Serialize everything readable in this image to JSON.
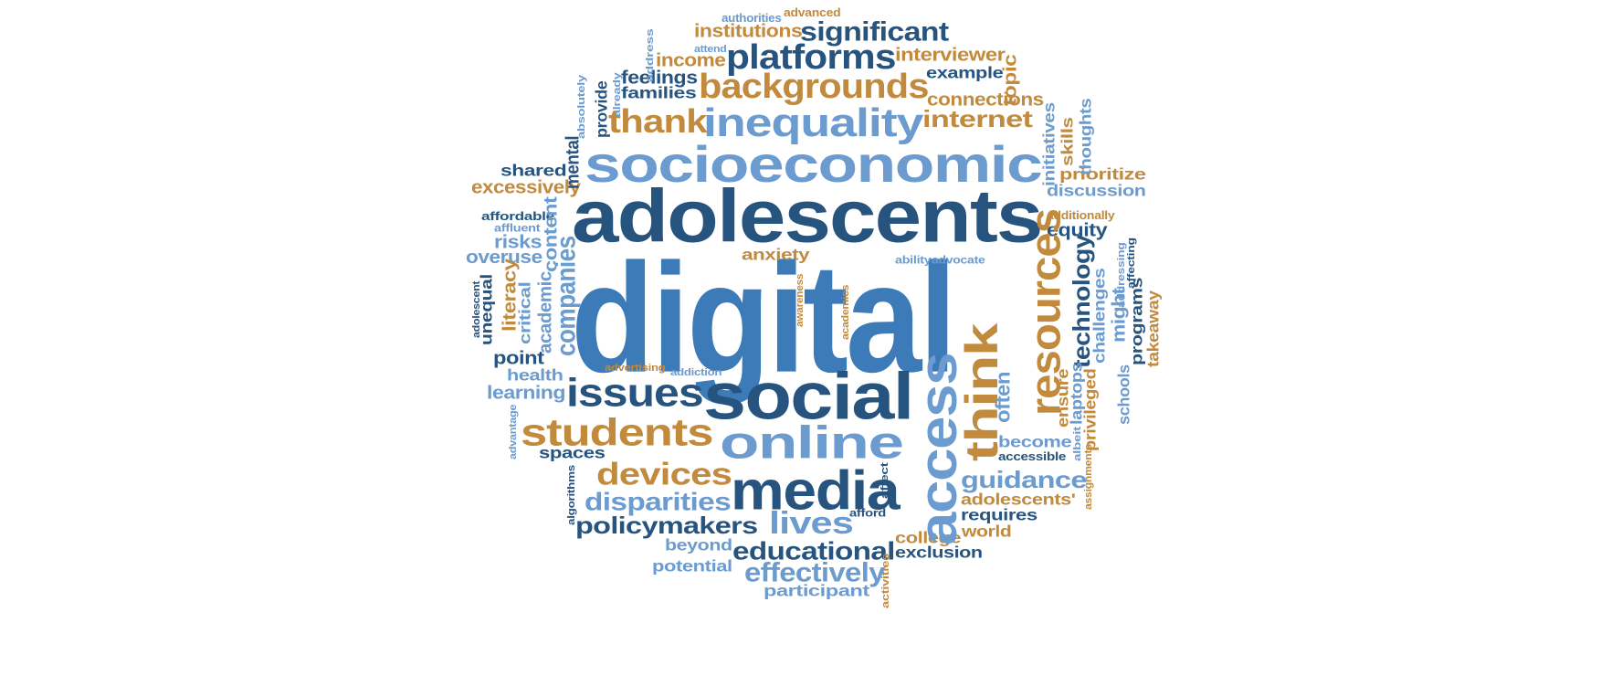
{
  "palette": {
    "navy": "#27547f",
    "blue": "#3d7ab8",
    "light": "#6b9bcf",
    "gold": "#c18a3d"
  },
  "words": [
    {
      "text": "digital",
      "color": "blue"
    },
    {
      "text": "adolescents",
      "color": "navy"
    },
    {
      "text": "socioeconomic",
      "color": "light"
    },
    {
      "text": "social",
      "color": "navy"
    },
    {
      "text": "media",
      "color": "navy"
    },
    {
      "text": "online",
      "color": "light"
    },
    {
      "text": "access",
      "color": "light"
    },
    {
      "text": "think",
      "color": "gold"
    },
    {
      "text": "resources",
      "color": "gold"
    },
    {
      "text": "inequality",
      "color": "light"
    },
    {
      "text": "platforms",
      "color": "navy"
    },
    {
      "text": "backgrounds",
      "color": "gold"
    },
    {
      "text": "students",
      "color": "gold"
    },
    {
      "text": "issues",
      "color": "navy"
    },
    {
      "text": "significant",
      "color": "navy"
    },
    {
      "text": "thank",
      "color": "gold"
    },
    {
      "text": "devices",
      "color": "gold"
    },
    {
      "text": "disparities",
      "color": "light"
    },
    {
      "text": "policymakers",
      "color": "navy"
    },
    {
      "text": "lives",
      "color": "light"
    },
    {
      "text": "educational",
      "color": "navy"
    },
    {
      "text": "effectively",
      "color": "light"
    },
    {
      "text": "guidance",
      "color": "light"
    },
    {
      "text": "internet",
      "color": "gold"
    },
    {
      "text": "technology",
      "color": "navy"
    },
    {
      "text": "companies",
      "color": "light"
    },
    {
      "text": "interviewer",
      "color": "gold"
    },
    {
      "text": "institutions",
      "color": "gold"
    },
    {
      "text": "example",
      "color": "navy"
    },
    {
      "text": "connections",
      "color": "gold"
    },
    {
      "text": "income",
      "color": "gold"
    },
    {
      "text": "feelings",
      "color": "navy"
    },
    {
      "text": "families",
      "color": "navy"
    },
    {
      "text": "topic",
      "color": "gold"
    },
    {
      "text": "authorities",
      "color": "light"
    },
    {
      "text": "advanced",
      "color": "gold"
    },
    {
      "text": "attend",
      "color": "light"
    },
    {
      "text": "address",
      "color": "light"
    },
    {
      "text": "already",
      "color": "light"
    },
    {
      "text": "absolutely",
      "color": "light"
    },
    {
      "text": "provide",
      "color": "navy"
    },
    {
      "text": "mental",
      "color": "navy"
    },
    {
      "text": "shared",
      "color": "navy"
    },
    {
      "text": "excessively",
      "color": "gold"
    },
    {
      "text": "affordable",
      "color": "navy"
    },
    {
      "text": "affluent",
      "color": "light"
    },
    {
      "text": "academic",
      "color": "light"
    },
    {
      "text": "content",
      "color": "light"
    },
    {
      "text": "risks",
      "color": "light"
    },
    {
      "text": "overuse",
      "color": "light"
    },
    {
      "text": "literacy",
      "color": "gold"
    },
    {
      "text": "critical",
      "color": "light"
    },
    {
      "text": "unequal",
      "color": "navy"
    },
    {
      "text": "adolescent",
      "color": "navy"
    },
    {
      "text": "point",
      "color": "navy"
    },
    {
      "text": "health",
      "color": "light"
    },
    {
      "text": "learning",
      "color": "light"
    },
    {
      "text": "advantage",
      "color": "light"
    },
    {
      "text": "spaces",
      "color": "navy"
    },
    {
      "text": "algorithms",
      "color": "navy"
    },
    {
      "text": "beyond",
      "color": "light"
    },
    {
      "text": "potential",
      "color": "light"
    },
    {
      "text": "participant",
      "color": "light"
    },
    {
      "text": "activities",
      "color": "gold"
    },
    {
      "text": "affect",
      "color": "navy"
    },
    {
      "text": "afford",
      "color": "navy"
    },
    {
      "text": "college",
      "color": "gold"
    },
    {
      "text": "exclusion",
      "color": "navy"
    },
    {
      "text": "world",
      "color": "gold"
    },
    {
      "text": "requires",
      "color": "navy"
    },
    {
      "text": "adolescents'",
      "color": "gold"
    },
    {
      "text": "become",
      "color": "light"
    },
    {
      "text": "accessible",
      "color": "navy"
    },
    {
      "text": "often",
      "color": "light"
    },
    {
      "text": "ensure",
      "color": "gold"
    },
    {
      "text": "laptops",
      "color": "light"
    },
    {
      "text": "albeit",
      "color": "light"
    },
    {
      "text": "privileged",
      "color": "gold"
    },
    {
      "text": "assignments",
      "color": "gold"
    },
    {
      "text": "schools",
      "color": "light"
    },
    {
      "text": "takeaway",
      "color": "gold"
    },
    {
      "text": "programs",
      "color": "navy"
    },
    {
      "text": "might",
      "color": "light"
    },
    {
      "text": "challenges",
      "color": "light"
    },
    {
      "text": "addressing",
      "color": "light"
    },
    {
      "text": "affecting",
      "color": "navy"
    },
    {
      "text": "equity",
      "color": "navy"
    },
    {
      "text": "additionally",
      "color": "gold"
    },
    {
      "text": "discussion",
      "color": "light"
    },
    {
      "text": "prioritize",
      "color": "gold"
    },
    {
      "text": "initiatives",
      "color": "light"
    },
    {
      "text": "skills",
      "color": "gold"
    },
    {
      "text": "thoughts",
      "color": "light"
    },
    {
      "text": "anxiety",
      "color": "gold"
    },
    {
      "text": "ability",
      "color": "light"
    },
    {
      "text": "advocate",
      "color": "light"
    },
    {
      "text": "awareness",
      "color": "gold"
    },
    {
      "text": "academics",
      "color": "gold"
    },
    {
      "text": "advertising",
      "color": "gold"
    },
    {
      "text": "addiction",
      "color": "light"
    }
  ]
}
